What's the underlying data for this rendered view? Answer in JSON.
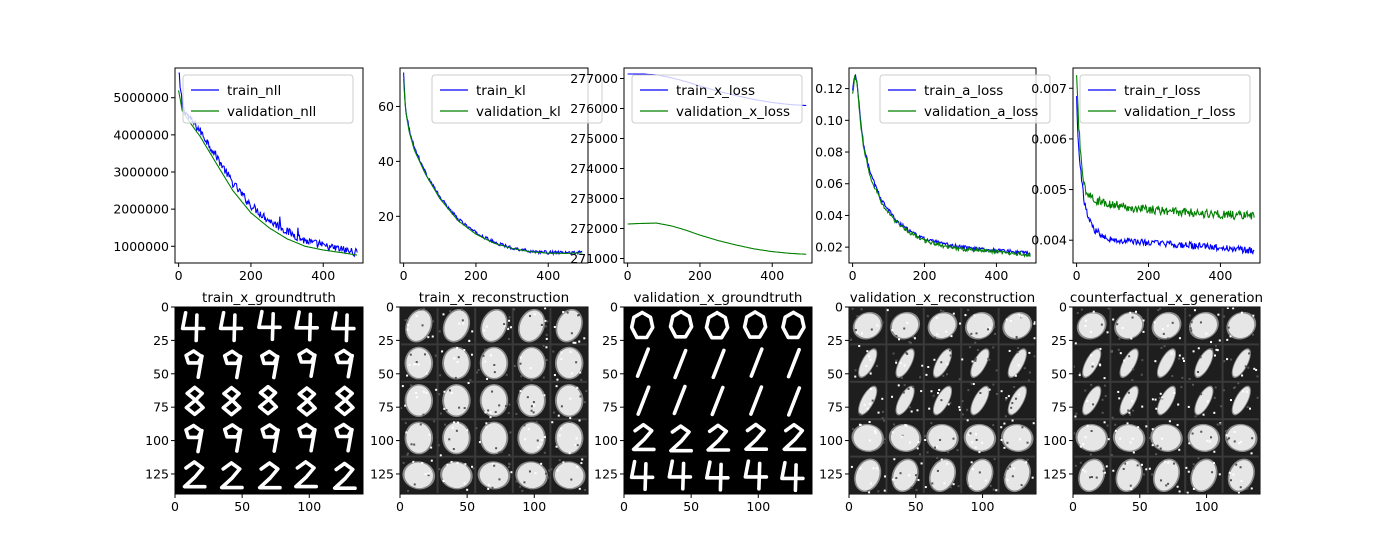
{
  "colors": {
    "train": "#0000ff",
    "validation": "#008000"
  },
  "chart_data": [
    {
      "type": "line",
      "id": "nll",
      "xlim": [
        -10,
        510
      ],
      "ylim": [
        550000,
        5800000
      ],
      "xticks": [
        0,
        200,
        400
      ],
      "xtick_labels": [
        "0",
        "200",
        "400"
      ],
      "yticks": [
        1000000,
        2000000,
        3000000,
        4000000,
        5000000
      ],
      "ytick_labels": [
        "1000000",
        "2000000",
        "3000000",
        "4000000",
        "5000000"
      ],
      "legend": "upper right",
      "series": [
        {
          "name": "train_nll",
          "color": "#0000ff",
          "noise": 110000,
          "points": [
            [
              0,
              5600000
            ],
            [
              10,
              4750000
            ],
            [
              30,
              4450000
            ],
            [
              60,
              4100000
            ],
            [
              100,
              3500000
            ],
            [
              150,
              2700000
            ],
            [
              200,
              2100000
            ],
            [
              250,
              1700000
            ],
            [
              300,
              1400000
            ],
            [
              350,
              1150000
            ],
            [
              400,
              1000000
            ],
            [
              450,
              920000
            ],
            [
              495,
              820000
            ]
          ],
          "spikes": [
            [
              280,
              1800000
            ],
            [
              330,
              1500000
            ],
            [
              390,
              1150000
            ]
          ]
        },
        {
          "name": "validation_nll",
          "color": "#008000",
          "noise": 0,
          "points": [
            [
              0,
              5200000
            ],
            [
              10,
              4650000
            ],
            [
              30,
              4350000
            ],
            [
              60,
              3950000
            ],
            [
              100,
              3300000
            ],
            [
              150,
              2500000
            ],
            [
              200,
              1900000
            ],
            [
              250,
              1500000
            ],
            [
              300,
              1200000
            ],
            [
              350,
              1000000
            ],
            [
              400,
              900000
            ],
            [
              450,
              830000
            ],
            [
              495,
              760000
            ]
          ]
        }
      ]
    },
    {
      "type": "line",
      "id": "kl",
      "xlim": [
        -10,
        510
      ],
      "ylim": [
        3,
        74
      ],
      "xticks": [
        0,
        200,
        400
      ],
      "xtick_labels": [
        "0",
        "200",
        "400"
      ],
      "yticks": [
        20,
        40,
        60
      ],
      "ytick_labels": [
        "20",
        "40",
        "60"
      ],
      "legend": "upper right",
      "series": [
        {
          "name": "train_kl",
          "color": "#0000ff",
          "noise": 0.6,
          "points": [
            [
              0,
              72
            ],
            [
              5,
              60
            ],
            [
              15,
              52
            ],
            [
              30,
              45
            ],
            [
              60,
              36
            ],
            [
              100,
              27
            ],
            [
              150,
              19
            ],
            [
              200,
              14
            ],
            [
              250,
              10.5
            ],
            [
              300,
              8.5
            ],
            [
              350,
              7.3
            ],
            [
              400,
              6.8
            ],
            [
              450,
              6.7
            ],
            [
              495,
              6.9
            ]
          ]
        },
        {
          "name": "validation_kl",
          "color": "#008000",
          "noise": 0,
          "points": [
            [
              0,
              70
            ],
            [
              5,
              59
            ],
            [
              15,
              51
            ],
            [
              30,
              44
            ],
            [
              60,
              35.5
            ],
            [
              100,
              26.5
            ],
            [
              150,
              18.5
            ],
            [
              200,
              13.5
            ],
            [
              250,
              10.2
            ],
            [
              300,
              8.3
            ],
            [
              350,
              7.1
            ],
            [
              400,
              6.6
            ],
            [
              450,
              6.5
            ],
            [
              495,
              6.7
            ]
          ]
        }
      ]
    },
    {
      "type": "line",
      "id": "x_loss",
      "xlim": [
        -10,
        510
      ],
      "ylim": [
        270850,
        277350
      ],
      "xticks": [
        0,
        200,
        400
      ],
      "xtick_labels": [
        "0",
        "200",
        "400"
      ],
      "yticks": [
        271000,
        272000,
        273000,
        274000,
        275000,
        276000,
        277000
      ],
      "ytick_labels": [
        "271000",
        "272000",
        "273000",
        "274000",
        "275000",
        "276000",
        "277000"
      ],
      "legend": "upper right",
      "series": [
        {
          "name": "train_x_loss",
          "color": "#0000ff",
          "noise": 0,
          "points": [
            [
              0,
              277150
            ],
            [
              40,
              277150
            ],
            [
              80,
              277120
            ],
            [
              120,
              277030
            ],
            [
              160,
              276900
            ],
            [
              200,
              276750
            ],
            [
              250,
              276580
            ],
            [
              300,
              276430
            ],
            [
              350,
              276300
            ],
            [
              400,
              276200
            ],
            [
              450,
              276130
            ],
            [
              495,
              276100
            ]
          ]
        },
        {
          "name": "validation_x_loss",
          "color": "#008000",
          "noise": 0,
          "points": [
            [
              0,
              272150
            ],
            [
              40,
              272170
            ],
            [
              80,
              272180
            ],
            [
              120,
              272090
            ],
            [
              160,
              271950
            ],
            [
              200,
              271780
            ],
            [
              250,
              271600
            ],
            [
              300,
              271450
            ],
            [
              350,
              271320
            ],
            [
              400,
              271230
            ],
            [
              450,
              271170
            ],
            [
              495,
              271140
            ]
          ]
        }
      ]
    },
    {
      "type": "line",
      "id": "a_loss",
      "xlim": [
        -10,
        510
      ],
      "ylim": [
        0.01,
        0.133
      ],
      "xticks": [
        0,
        200,
        400
      ],
      "xtick_labels": [
        "0",
        "200",
        "400"
      ],
      "yticks": [
        0.02,
        0.04,
        0.06,
        0.08,
        0.1,
        0.12
      ],
      "ytick_labels": [
        "0.02",
        "0.04",
        "0.06",
        "0.08",
        "0.10",
        "0.12"
      ],
      "legend": "upper right",
      "series": [
        {
          "name": "train_a_loss",
          "color": "#0000ff",
          "noise": 0.0012,
          "points": [
            [
              0,
              0.118
            ],
            [
              5,
              0.128
            ],
            [
              12,
              0.125
            ],
            [
              20,
              0.105
            ],
            [
              30,
              0.085
            ],
            [
              50,
              0.066
            ],
            [
              80,
              0.05
            ],
            [
              120,
              0.037
            ],
            [
              160,
              0.03
            ],
            [
              200,
              0.025
            ],
            [
              250,
              0.022
            ],
            [
              300,
              0.02
            ],
            [
              350,
              0.019
            ],
            [
              400,
              0.018
            ],
            [
              450,
              0.017
            ],
            [
              495,
              0.016
            ]
          ]
        },
        {
          "name": "validation_a_loss",
          "color": "#008000",
          "noise": 0.0012,
          "points": [
            [
              0,
              0.116
            ],
            [
              5,
              0.127
            ],
            [
              12,
              0.124
            ],
            [
              20,
              0.103
            ],
            [
              30,
              0.083
            ],
            [
              50,
              0.064
            ],
            [
              80,
              0.048
            ],
            [
              120,
              0.036
            ],
            [
              160,
              0.029
            ],
            [
              200,
              0.024
            ],
            [
              250,
              0.021
            ],
            [
              300,
              0.019
            ],
            [
              350,
              0.018
            ],
            [
              400,
              0.017
            ],
            [
              450,
              0.016
            ],
            [
              495,
              0.015
            ]
          ]
        }
      ]
    },
    {
      "type": "line",
      "id": "r_loss",
      "xlim": [
        -10,
        510
      ],
      "ylim": [
        0.00355,
        0.0074
      ],
      "xticks": [
        0,
        200,
        400
      ],
      "xtick_labels": [
        "0",
        "200",
        "400"
      ],
      "yticks": [
        0.004,
        0.005,
        0.006,
        0.007
      ],
      "ytick_labels": [
        "0.004",
        "0.005",
        "0.006",
        "0.007"
      ],
      "legend": "upper right",
      "series": [
        {
          "name": "train_r_loss",
          "color": "#0000ff",
          "noise": 7e-05,
          "points": [
            [
              0,
              0.0068
            ],
            [
              5,
              0.006
            ],
            [
              10,
              0.0055
            ],
            [
              20,
              0.0048
            ],
            [
              30,
              0.0045
            ],
            [
              50,
              0.0042
            ],
            [
              100,
              0.004
            ],
            [
              200,
              0.00395
            ],
            [
              300,
              0.0039
            ],
            [
              400,
              0.00385
            ],
            [
              495,
              0.0038
            ]
          ]
        },
        {
          "name": "validation_r_loss",
          "color": "#008000",
          "noise": 9e-05,
          "points": [
            [
              0,
              0.0072
            ],
            [
              5,
              0.0063
            ],
            [
              10,
              0.0058
            ],
            [
              20,
              0.0051
            ],
            [
              30,
              0.0049
            ],
            [
              50,
              0.0048
            ],
            [
              100,
              0.0047
            ],
            [
              200,
              0.0046
            ],
            [
              300,
              0.00455
            ],
            [
              400,
              0.0045
            ],
            [
              495,
              0.00448
            ]
          ]
        }
      ]
    }
  ],
  "images": {
    "ticks": [
      0,
      50,
      100
    ],
    "xtick_labels": [
      "0",
      "50",
      "100"
    ],
    "yticks": [
      0,
      25,
      50,
      75,
      100,
      125
    ],
    "ytick_labels": [
      "0",
      "25",
      "50",
      "75",
      "100",
      "125"
    ],
    "extent": 140,
    "panels": [
      {
        "title": "train_x_groundtruth",
        "style": "digits",
        "rows": [
          "4",
          "9",
          "8",
          "9",
          "2"
        ]
      },
      {
        "title": "train_x_reconstruction",
        "style": "blurry",
        "rows": [
          "4",
          "9",
          "8",
          "9",
          "2"
        ]
      },
      {
        "title": "validation_x_groundtruth",
        "style": "digits",
        "rows": [
          "0",
          "1",
          "1",
          "2",
          "4"
        ]
      },
      {
        "title": "validation_x_reconstruction",
        "style": "blurry",
        "rows": [
          "0",
          "1",
          "1",
          "2",
          "4"
        ]
      },
      {
        "title": "counterfactual_x_generation",
        "style": "blurry",
        "rows": [
          "0",
          "1",
          "1",
          "2",
          "4"
        ]
      }
    ]
  }
}
